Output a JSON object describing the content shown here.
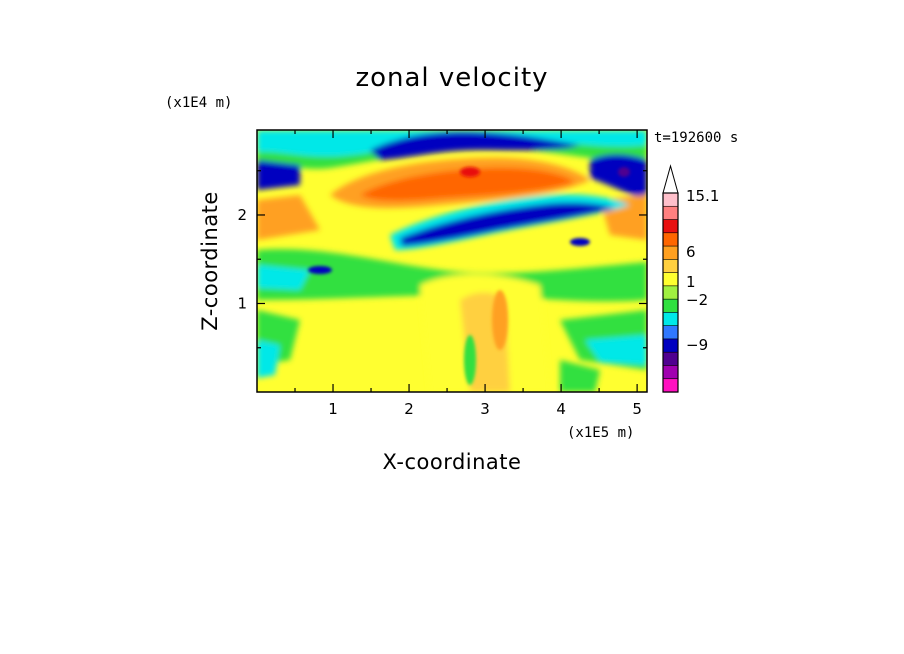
{
  "chart_data": {
    "type": "heatmap",
    "title": "zonal velocity",
    "xlabel": "X-coordinate",
    "ylabel": "Z-coordinate",
    "x_scale_note": "(x1E5 m)",
    "y_scale_note": "(x1E4 m)",
    "time_label": "t=192600 s",
    "xlim": [
      0,
      5.13
    ],
    "ylim": [
      0,
      2.96
    ],
    "x_ticks": [
      "1",
      "2",
      "3",
      "4",
      "5"
    ],
    "y_ticks": [
      "1",
      "2"
    ],
    "colorbar": {
      "labels": [
        "15.1",
        "6",
        "1",
        "-2",
        "-9"
      ],
      "colors": [
        "#ffc0cb",
        "#ff8080",
        "#e81010",
        "#ff6600",
        "#ffa020",
        "#ffd040",
        "#ffff30",
        "#a0f040",
        "#30e040",
        "#00e8e8",
        "#3078ff",
        "#0000c0",
        "#500090",
        "#a000b0",
        "#ff10c0"
      ]
    },
    "field_bands": [
      {
        "zmax": 0.25,
        "dominant": "yellow",
        "notes": "yellow near surface with cyan/green patches"
      },
      {
        "zmax": 0.6,
        "dominant": "yellow",
        "notes": "green/cyan at left and right"
      },
      {
        "zmax": 1.2,
        "dominant": "yellow",
        "notes": "green band, yellow core near x=3"
      },
      {
        "zmax": 1.5,
        "dominant": "green",
        "notes": "cyan and blue patches"
      },
      {
        "zmax": 1.9,
        "dominant": "orange/yellow",
        "notes": "blue jet x=1.8-4"
      },
      {
        "zmax": 2.6,
        "dominant": "orange",
        "notes": "orange core x=1.5-4"
      },
      {
        "zmax": 2.96,
        "dominant": "blue/cyan",
        "notes": "blue jet across top"
      }
    ]
  }
}
